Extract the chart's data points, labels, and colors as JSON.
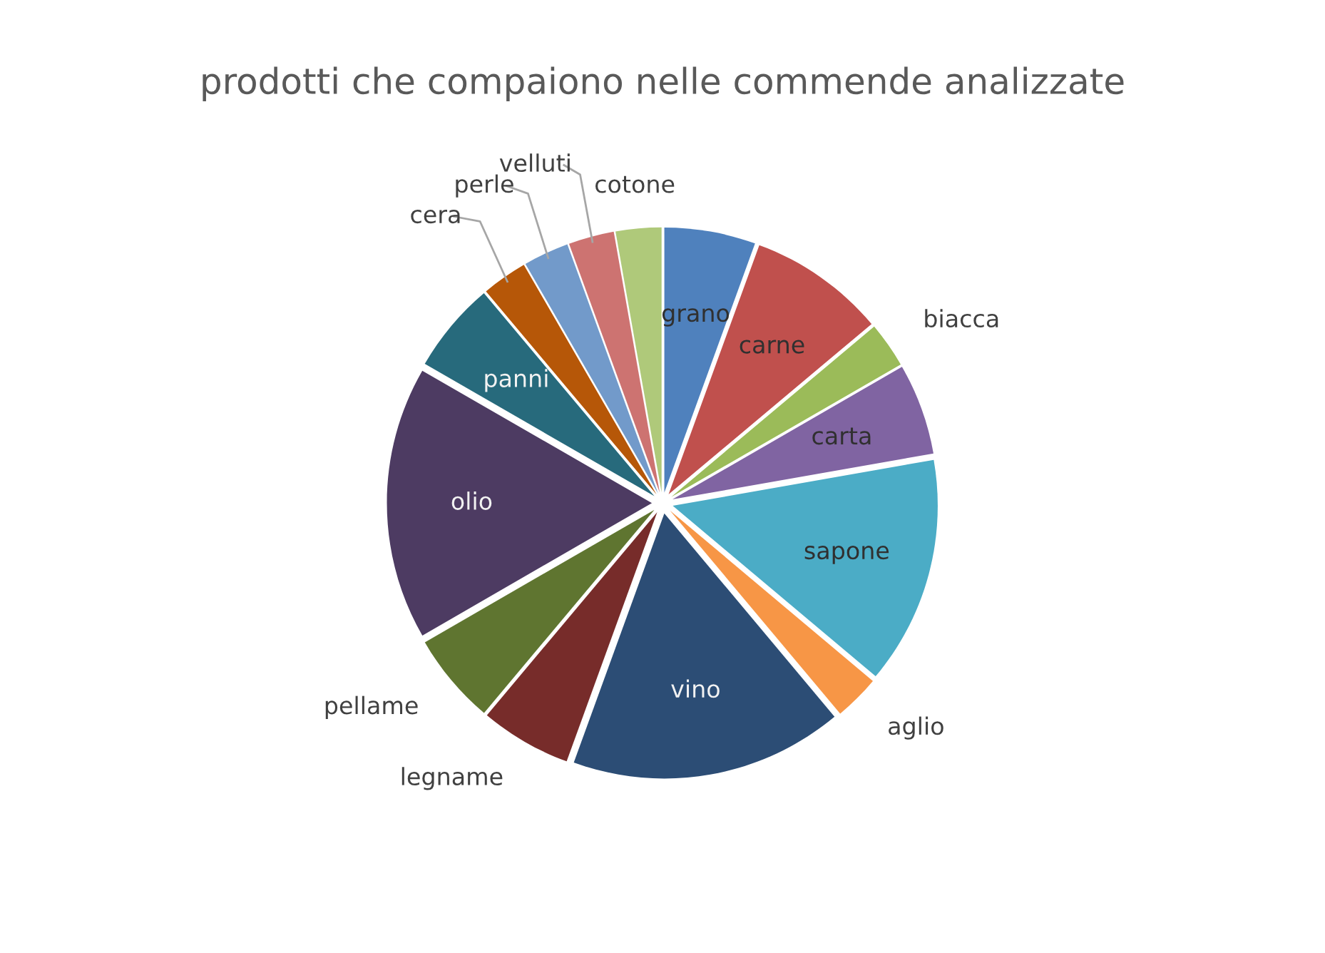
{
  "chart_data": {
    "type": "pie",
    "title": "prodotti che compaiono nelle commende analizzate",
    "categories": [
      "grano",
      "carne",
      "biacca",
      "carta",
      "sapone",
      "aglio",
      "vino",
      "legname",
      "pellame",
      "olio",
      "panni",
      "cera",
      "perle",
      "velluti",
      "cotone"
    ],
    "values": [
      5.56,
      8.33,
      2.78,
      5.56,
      13.89,
      2.78,
      16.65,
      5.56,
      5.56,
      16.65,
      5.56,
      2.78,
      2.78,
      2.78,
      2.78
    ],
    "colors": [
      "#4f81bd",
      "#c0504d",
      "#9bbb59",
      "#8064a2",
      "#4bacc6",
      "#f79646",
      "#2c4d75",
      "#772c2a",
      "#5f7530",
      "#4d3b62",
      "#276a7c",
      "#b65708",
      "#729aca",
      "#cd7371",
      "#afc97a"
    ],
    "legend": false
  }
}
